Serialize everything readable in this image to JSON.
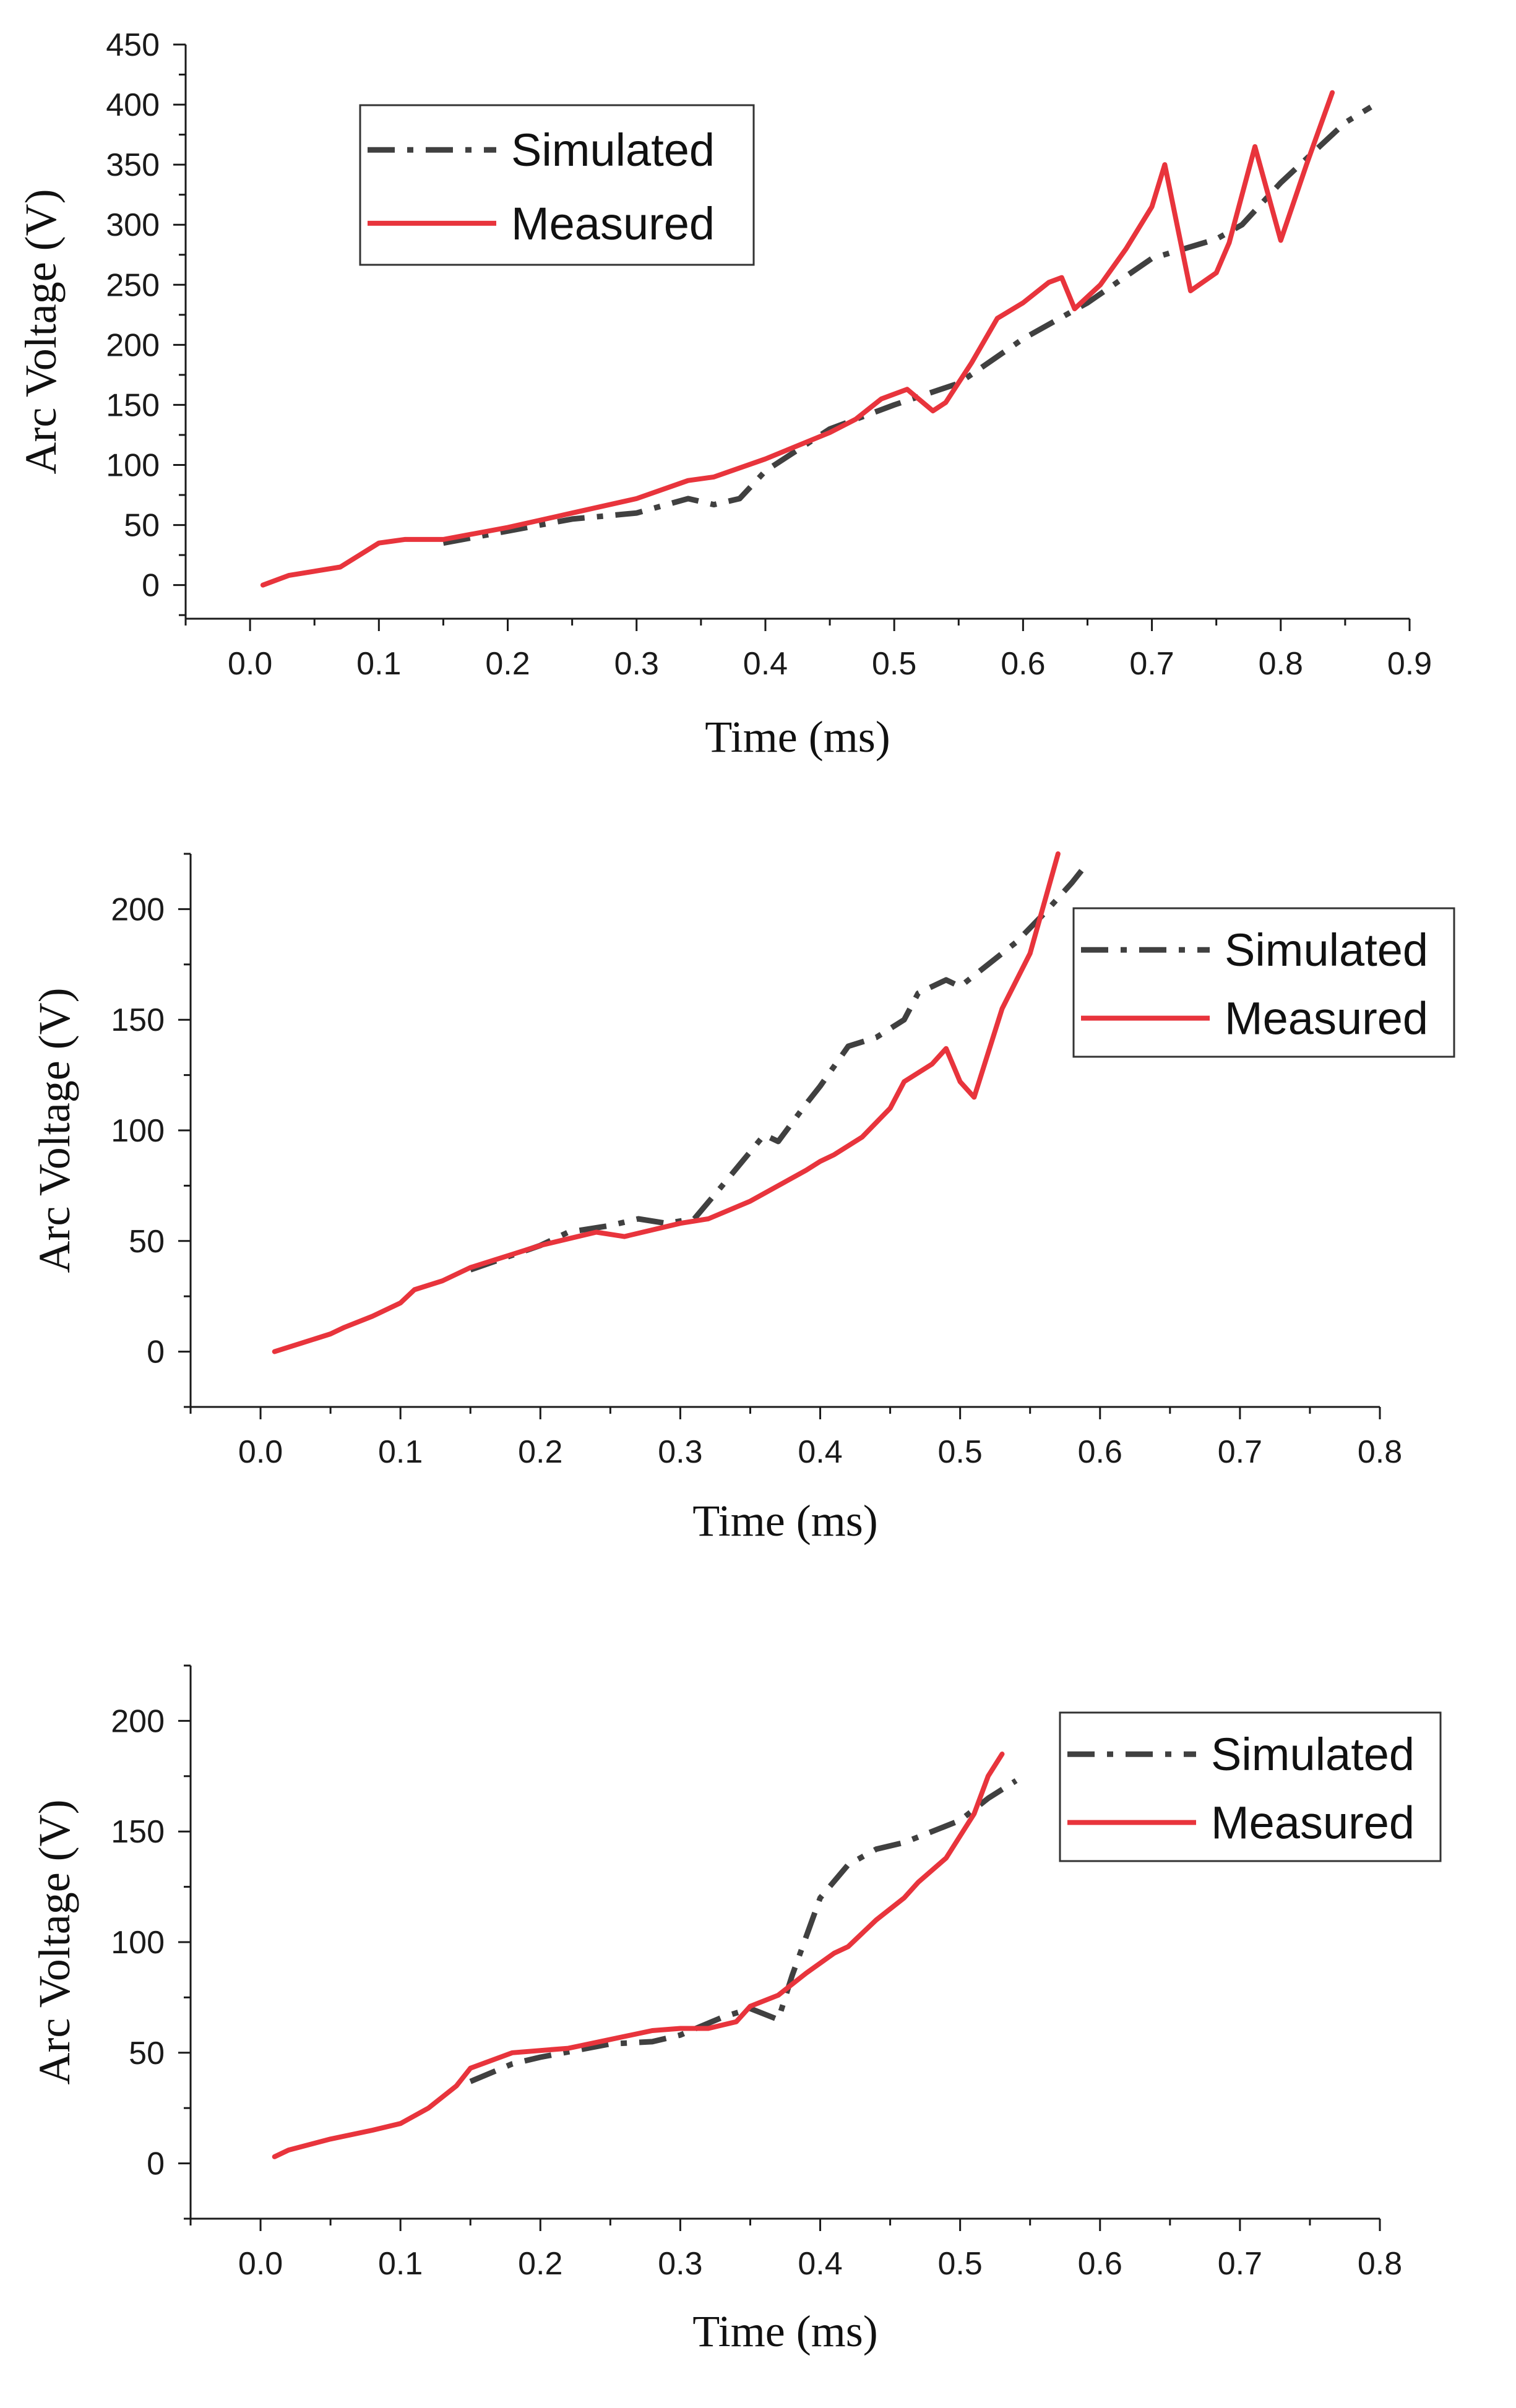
{
  "legend": {
    "simulated": "Simulated",
    "measured": "Measured"
  },
  "colors": {
    "simulated": "#404040",
    "measured": "#e8343c",
    "axis": "#1a1a1a"
  },
  "chart_data": [
    {
      "type": "line",
      "title": "",
      "xlabel": "Time (ms)",
      "ylabel": "Arc Voltage (V)",
      "xlim": [
        -0.05,
        0.9
      ],
      "ylim": [
        -28,
        450
      ],
      "xticks": [
        0.0,
        0.1,
        0.2,
        0.3,
        0.4,
        0.5,
        0.6,
        0.7,
        0.8,
        0.9
      ],
      "xtick_labels": [
        "0.0",
        "0.1",
        "0.2",
        "0.3",
        "0.4",
        "0.5",
        "0.6",
        "0.7",
        "0.8",
        "0.9"
      ],
      "yticks": [
        0,
        50,
        100,
        150,
        200,
        250,
        300,
        350,
        400,
        450
      ],
      "ytick_labels": [
        "0",
        "50",
        "100",
        "150",
        "200",
        "250",
        "300",
        "350",
        "400",
        "450"
      ],
      "legend_position": "top-left",
      "series": [
        {
          "name": "Simulated",
          "style": "dash-dot",
          "x": [
            0.15,
            0.2,
            0.25,
            0.3,
            0.34,
            0.36,
            0.38,
            0.4,
            0.45,
            0.5,
            0.55,
            0.6,
            0.65,
            0.7,
            0.75,
            0.77,
            0.8,
            0.85,
            0.87
          ],
          "y": [
            35,
            45,
            55,
            60,
            72,
            67,
            72,
            95,
            130,
            150,
            168,
            205,
            235,
            272,
            288,
            300,
            335,
            385,
            398
          ]
        },
        {
          "name": "Measured",
          "style": "solid",
          "x": [
            0.01,
            0.03,
            0.07,
            0.1,
            0.12,
            0.15,
            0.2,
            0.25,
            0.3,
            0.34,
            0.36,
            0.4,
            0.45,
            0.47,
            0.49,
            0.51,
            0.53,
            0.54,
            0.56,
            0.58,
            0.6,
            0.62,
            0.63,
            0.64,
            0.66,
            0.68,
            0.7,
            0.71,
            0.73,
            0.75,
            0.76,
            0.78,
            0.8,
            0.82,
            0.84
          ],
          "y": [
            0,
            8,
            15,
            35,
            38,
            38,
            48,
            60,
            72,
            87,
            90,
            105,
            127,
            138,
            155,
            163,
            145,
            152,
            185,
            222,
            235,
            252,
            256,
            230,
            250,
            280,
            315,
            350,
            245,
            260,
            285,
            365,
            287,
            350,
            410
          ]
        }
      ]
    },
    {
      "type": "line",
      "title": "",
      "xlabel": "Time (ms)",
      "ylabel": "Arc Voltage (V)",
      "xlim": [
        -0.05,
        0.8
      ],
      "ylim": [
        -25,
        225
      ],
      "xticks": [
        0.0,
        0.1,
        0.2,
        0.3,
        0.4,
        0.5,
        0.6,
        0.7,
        0.8
      ],
      "xtick_labels": [
        "0.0",
        "0.1",
        "0.2",
        "0.3",
        "0.4",
        "0.5",
        "0.6",
        "0.7",
        "0.8"
      ],
      "yticks": [
        0,
        50,
        100,
        150,
        200
      ],
      "ytick_labels": [
        "0",
        "50",
        "100",
        "150",
        "200"
      ],
      "legend_position": "top-right",
      "series": [
        {
          "name": "Simulated",
          "style": "dash-dot",
          "x": [
            0.15,
            0.2,
            0.22,
            0.25,
            0.27,
            0.29,
            0.31,
            0.33,
            0.36,
            0.37,
            0.39,
            0.4,
            0.42,
            0.44,
            0.46,
            0.47,
            0.49,
            0.5,
            0.52,
            0.54,
            0.56,
            0.58,
            0.59
          ],
          "y": [
            37,
            48,
            54,
            57,
            60,
            58,
            60,
            75,
            98,
            95,
            112,
            120,
            138,
            142,
            150,
            162,
            168,
            165,
            175,
            185,
            198,
            212,
            220
          ]
        },
        {
          "name": "Measured",
          "style": "solid",
          "x": [
            0.01,
            0.03,
            0.05,
            0.06,
            0.08,
            0.1,
            0.11,
            0.13,
            0.15,
            0.18,
            0.2,
            0.22,
            0.24,
            0.25,
            0.26,
            0.28,
            0.3,
            0.32,
            0.35,
            0.37,
            0.39,
            0.4,
            0.41,
            0.43,
            0.45,
            0.46,
            0.48,
            0.49,
            0.5,
            0.51,
            0.53,
            0.55,
            0.57
          ],
          "y": [
            0,
            4,
            8,
            11,
            16,
            22,
            28,
            32,
            38,
            44,
            48,
            51,
            54,
            53,
            52,
            55,
            58,
            60,
            68,
            75,
            82,
            86,
            89,
            97,
            110,
            122,
            130,
            137,
            122,
            115,
            155,
            180,
            225
          ]
        }
      ]
    },
    {
      "type": "line",
      "title": "",
      "xlabel": "Time (ms)",
      "ylabel": "Arc Voltage (V)",
      "xlim": [
        -0.05,
        0.8
      ],
      "ylim": [
        -25,
        225
      ],
      "xticks": [
        0.0,
        0.1,
        0.2,
        0.3,
        0.4,
        0.5,
        0.6,
        0.7,
        0.8
      ],
      "xtick_labels": [
        "0.0",
        "0.1",
        "0.2",
        "0.3",
        "0.4",
        "0.5",
        "0.6",
        "0.7",
        "0.8"
      ],
      "yticks": [
        0,
        50,
        100,
        150,
        200
      ],
      "ytick_labels": [
        "0",
        "50",
        "100",
        "150",
        "200"
      ],
      "legend_position": "top-right",
      "series": [
        {
          "name": "Simulated",
          "style": "dash-dot",
          "x": [
            0.15,
            0.18,
            0.2,
            0.25,
            0.28,
            0.3,
            0.33,
            0.35,
            0.37,
            0.38,
            0.4,
            0.42,
            0.44,
            0.46,
            0.48,
            0.5,
            0.52,
            0.54
          ],
          "y": [
            37,
            45,
            48,
            54,
            55,
            58,
            66,
            70,
            65,
            85,
            120,
            135,
            142,
            145,
            150,
            155,
            165,
            173
          ]
        },
        {
          "name": "Measured",
          "style": "solid",
          "x": [
            0.01,
            0.02,
            0.05,
            0.08,
            0.1,
            0.12,
            0.14,
            0.15,
            0.18,
            0.2,
            0.22,
            0.25,
            0.28,
            0.3,
            0.32,
            0.34,
            0.35,
            0.37,
            0.39,
            0.41,
            0.42,
            0.44,
            0.46,
            0.47,
            0.49,
            0.51,
            0.52,
            0.53
          ],
          "y": [
            3,
            6,
            11,
            15,
            18,
            25,
            35,
            43,
            50,
            51,
            52,
            56,
            60,
            61,
            61,
            64,
            71,
            76,
            86,
            95,
            98,
            110,
            120,
            127,
            138,
            158,
            175,
            185
          ]
        }
      ]
    }
  ]
}
